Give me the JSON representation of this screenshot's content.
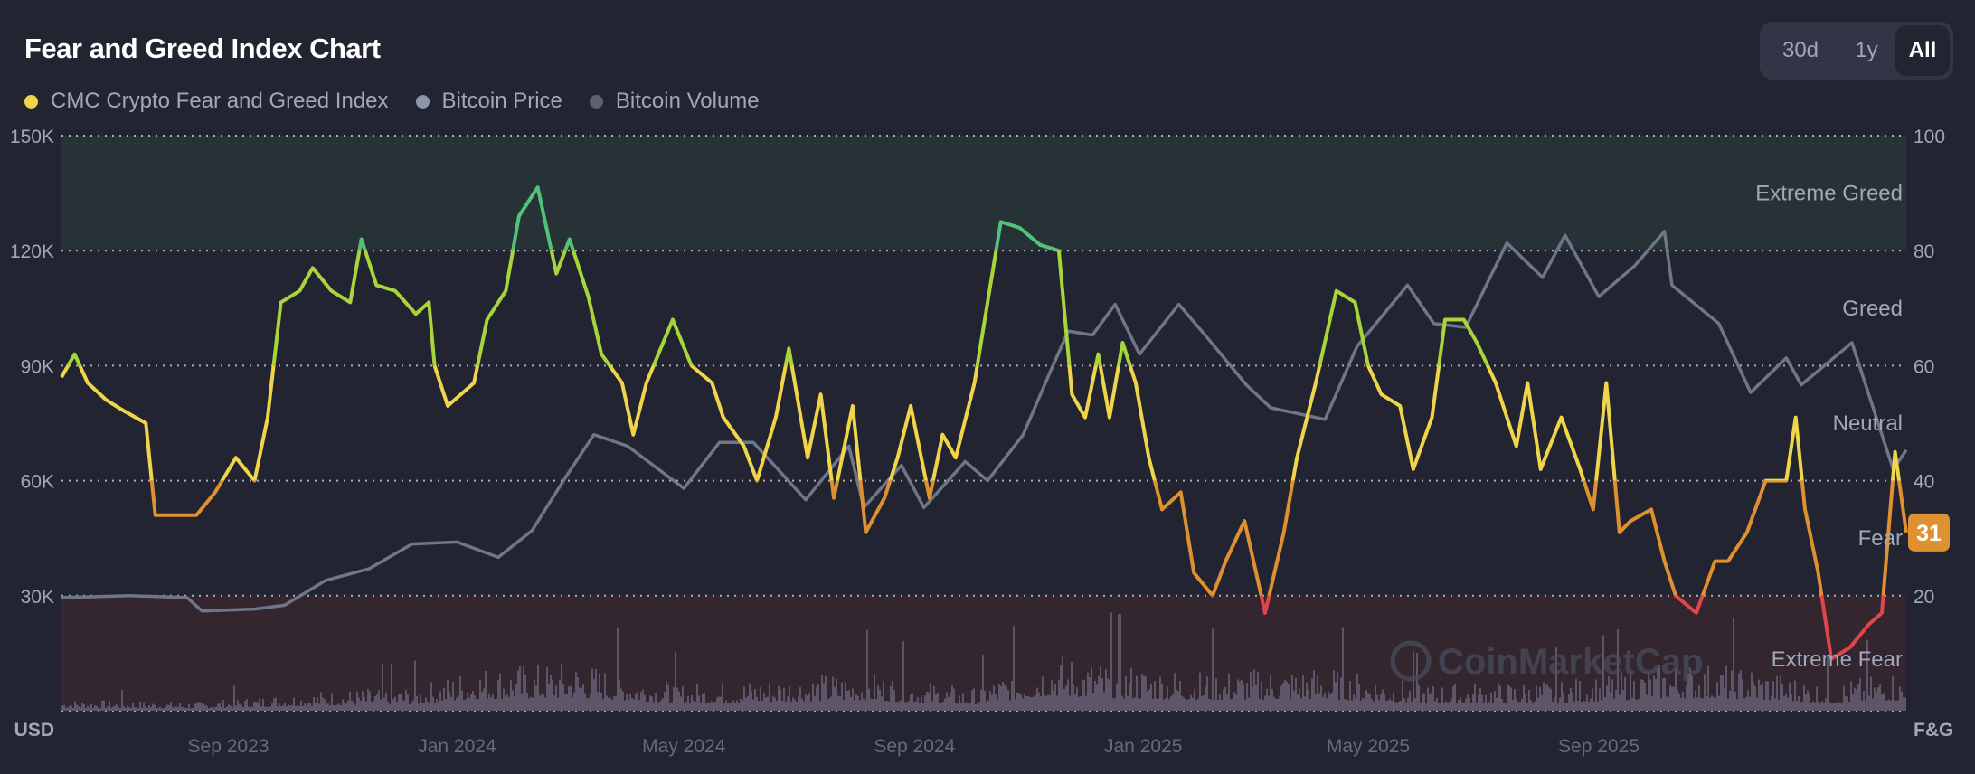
{
  "title": "Fear and Greed Index Chart",
  "legend": [
    {
      "label": "CMC Crypto Fear and Greed Index",
      "color": "#f0d54a"
    },
    {
      "label": "Bitcoin Price",
      "color": "#8e95a8"
    },
    {
      "label": "Bitcoin Volume",
      "color": "#5c6072"
    }
  ],
  "range_buttons": {
    "b30": "30d",
    "b1y": "1y",
    "all": "All",
    "active": "All"
  },
  "watermark": "CoinMarketCap",
  "chart_data": {
    "type": "line",
    "title": "Fear and Greed Index Chart",
    "x_range": [
      "2023-06-04",
      "2026-02-12"
    ],
    "x_ticks": [
      "Sep 2023",
      "Jan 2024",
      "May 2024",
      "Sep 2024",
      "Jan 2025",
      "May 2025",
      "Sep 2025"
    ],
    "x_tick_dates": [
      "2023-09-01",
      "2024-01-01",
      "2024-05-01",
      "2024-09-01",
      "2025-01-01",
      "2025-05-01",
      "2025-09-01"
    ],
    "y_left": {
      "label": "USD",
      "range": [
        0,
        150000
      ],
      "ticks": [
        "30K",
        "60K",
        "90K",
        "120K",
        "150K"
      ],
      "tick_values": [
        30000,
        60000,
        90000,
        120000,
        150000
      ]
    },
    "y_right": {
      "label": "F&G",
      "range": [
        0,
        100
      ],
      "ticks": [
        "20",
        "40",
        "60",
        "80",
        "100"
      ],
      "tick_values": [
        20,
        40,
        60,
        80,
        100
      ]
    },
    "grid": true,
    "legend_position": "top-left",
    "zones": [
      {
        "label": "Extreme Greed",
        "from": 80,
        "to": 100,
        "color": "#52c17a",
        "band": "#263236"
      },
      {
        "label": "Greed",
        "from": 60,
        "to": 80,
        "color": "#a8d63a"
      },
      {
        "label": "Neutral",
        "from": 40,
        "to": 60,
        "color": "#f0d54a"
      },
      {
        "label": "Fear",
        "from": 20,
        "to": 40,
        "color": "#e0912f"
      },
      {
        "label": "Extreme Fear",
        "from": 0,
        "to": 20,
        "color": "#e0474c",
        "band": "#33262f"
      }
    ],
    "current_value": "31",
    "current_color": "#e0912f",
    "series": [
      {
        "name": "CMC Crypto Fear and Greed Index",
        "axis": "right",
        "points": [
          [
            "2023-06-04",
            58
          ],
          [
            "2023-06-11",
            62
          ],
          [
            "2023-06-18",
            57
          ],
          [
            "2023-06-28",
            54
          ],
          [
            "2023-07-08",
            52
          ],
          [
            "2023-07-19",
            50
          ],
          [
            "2023-07-24",
            34
          ],
          [
            "2023-08-05",
            34
          ],
          [
            "2023-08-15",
            34
          ],
          [
            "2023-08-25",
            38
          ],
          [
            "2023-09-05",
            44
          ],
          [
            "2023-09-15",
            40
          ],
          [
            "2023-09-22",
            51
          ],
          [
            "2023-09-29",
            71
          ],
          [
            "2023-10-09",
            73
          ],
          [
            "2023-10-16",
            77
          ],
          [
            "2023-10-26",
            73
          ],
          [
            "2023-11-05",
            71
          ],
          [
            "2023-11-11",
            82
          ],
          [
            "2023-11-19",
            74
          ],
          [
            "2023-11-29",
            73
          ],
          [
            "2023-12-10",
            69
          ],
          [
            "2023-12-17",
            71
          ],
          [
            "2023-12-20",
            60
          ],
          [
            "2023-12-27",
            53
          ],
          [
            "2024-01-03",
            55
          ],
          [
            "2024-01-10",
            57
          ],
          [
            "2024-01-17",
            68
          ],
          [
            "2024-01-27",
            73
          ],
          [
            "2024-02-03",
            86
          ],
          [
            "2024-02-13",
            91
          ],
          [
            "2024-02-23",
            76
          ],
          [
            "2024-03-01",
            82
          ],
          [
            "2024-03-11",
            72
          ],
          [
            "2024-03-18",
            62
          ],
          [
            "2024-03-29",
            57
          ],
          [
            "2024-04-04",
            48
          ],
          [
            "2024-04-11",
            57
          ],
          [
            "2024-04-25",
            68
          ],
          [
            "2024-05-05",
            60
          ],
          [
            "2024-05-16",
            57
          ],
          [
            "2024-05-22",
            51
          ],
          [
            "2024-06-02",
            46
          ],
          [
            "2024-06-09",
            40
          ],
          [
            "2024-06-19",
            51
          ],
          [
            "2024-06-26",
            63
          ],
          [
            "2024-07-06",
            44
          ],
          [
            "2024-07-13",
            55
          ],
          [
            "2024-07-20",
            37
          ],
          [
            "2024-07-30",
            53
          ],
          [
            "2024-08-06",
            31
          ],
          [
            "2024-08-16",
            37
          ],
          [
            "2024-08-23",
            44
          ],
          [
            "2024-08-30",
            53
          ],
          [
            "2024-09-09",
            37
          ],
          [
            "2024-09-16",
            48
          ],
          [
            "2024-09-23",
            44
          ],
          [
            "2024-10-03",
            57
          ],
          [
            "2024-10-10",
            71
          ],
          [
            "2024-10-17",
            85
          ],
          [
            "2024-10-27",
            84
          ],
          [
            "2024-11-07",
            81
          ],
          [
            "2024-11-17",
            80
          ],
          [
            "2024-11-24",
            55
          ],
          [
            "2024-12-01",
            51
          ],
          [
            "2024-12-08",
            62
          ],
          [
            "2024-12-14",
            51
          ],
          [
            "2024-12-21",
            64
          ],
          [
            "2024-12-28",
            57
          ],
          [
            "2025-01-04",
            44
          ],
          [
            "2025-01-11",
            35
          ],
          [
            "2025-01-21",
            38
          ],
          [
            "2025-01-28",
            24
          ],
          [
            "2025-02-07",
            20
          ],
          [
            "2025-02-14",
            26
          ],
          [
            "2025-02-24",
            33
          ],
          [
            "2025-03-07",
            17
          ],
          [
            "2025-03-17",
            31
          ],
          [
            "2025-03-24",
            44
          ],
          [
            "2025-04-03",
            57
          ],
          [
            "2025-04-14",
            73
          ],
          [
            "2025-04-24",
            71
          ],
          [
            "2025-05-01",
            60
          ],
          [
            "2025-05-08",
            55
          ],
          [
            "2025-05-18",
            53
          ],
          [
            "2025-05-25",
            42
          ],
          [
            "2025-06-04",
            51
          ],
          [
            "2025-06-11",
            68
          ],
          [
            "2025-06-21",
            68
          ],
          [
            "2025-06-28",
            64
          ],
          [
            "2025-07-08",
            57
          ],
          [
            "2025-07-19",
            46
          ],
          [
            "2025-07-25",
            57
          ],
          [
            "2025-08-01",
            42
          ],
          [
            "2025-08-12",
            51
          ],
          [
            "2025-08-22",
            42
          ],
          [
            "2025-08-29",
            35
          ],
          [
            "2025-09-05",
            57
          ],
          [
            "2025-09-12",
            31
          ],
          [
            "2025-09-18",
            33
          ],
          [
            "2025-09-29",
            35
          ],
          [
            "2025-10-06",
            26
          ],
          [
            "2025-10-12",
            20
          ],
          [
            "2025-10-23",
            17
          ],
          [
            "2025-11-02",
            26
          ],
          [
            "2025-11-09",
            26
          ],
          [
            "2025-11-19",
            31
          ],
          [
            "2025-11-29",
            40
          ],
          [
            "2025-12-10",
            40
          ],
          [
            "2025-12-15",
            51
          ],
          [
            "2025-12-20",
            35
          ],
          [
            "2025-12-27",
            24
          ],
          [
            "2026-01-03",
            9
          ],
          [
            "2026-01-13",
            11
          ],
          [
            "2026-01-23",
            15
          ],
          [
            "2026-01-30",
            17
          ],
          [
            "2026-02-06",
            45
          ],
          [
            "2026-02-12",
            31
          ]
        ]
      },
      {
        "name": "Bitcoin Price",
        "axis": "left",
        "color": "#6f7689",
        "points": [
          [
            "2023-06-04",
            29500
          ],
          [
            "2023-07-10",
            30000
          ],
          [
            "2023-08-10",
            29500
          ],
          [
            "2023-08-18",
            26000
          ],
          [
            "2023-09-15",
            26500
          ],
          [
            "2023-10-01",
            27500
          ],
          [
            "2023-10-23",
            34000
          ],
          [
            "2023-11-15",
            37000
          ],
          [
            "2023-12-08",
            43500
          ],
          [
            "2024-01-01",
            44000
          ],
          [
            "2024-01-23",
            40000
          ],
          [
            "2024-02-10",
            47000
          ],
          [
            "2024-02-28",
            61000
          ],
          [
            "2024-03-14",
            72000
          ],
          [
            "2024-04-01",
            69000
          ],
          [
            "2024-05-01",
            58000
          ],
          [
            "2024-05-20",
            70000
          ],
          [
            "2024-06-07",
            70000
          ],
          [
            "2024-07-05",
            55000
          ],
          [
            "2024-07-28",
            69000
          ],
          [
            "2024-08-05",
            53000
          ],
          [
            "2024-08-25",
            64000
          ],
          [
            "2024-09-06",
            53000
          ],
          [
            "2024-09-28",
            65000
          ],
          [
            "2024-10-10",
            60000
          ],
          [
            "2024-10-29",
            72000
          ],
          [
            "2024-11-12",
            88000
          ],
          [
            "2024-11-22",
            99000
          ],
          [
            "2024-12-05",
            98000
          ],
          [
            "2024-12-17",
            106000
          ],
          [
            "2024-12-30",
            93000
          ],
          [
            "2025-01-20",
            106000
          ],
          [
            "2025-02-03",
            98000
          ],
          [
            "2025-02-25",
            85000
          ],
          [
            "2025-03-10",
            79000
          ],
          [
            "2025-04-08",
            76000
          ],
          [
            "2025-04-25",
            95000
          ],
          [
            "2025-05-22",
            111000
          ],
          [
            "2025-06-05",
            101000
          ],
          [
            "2025-06-22",
            100000
          ],
          [
            "2025-07-14",
            122000
          ],
          [
            "2025-08-02",
            113000
          ],
          [
            "2025-08-14",
            124000
          ],
          [
            "2025-09-01",
            108000
          ],
          [
            "2025-09-20",
            116000
          ],
          [
            "2025-10-06",
            125000
          ],
          [
            "2025-10-10",
            111000
          ],
          [
            "2025-11-04",
            101000
          ],
          [
            "2025-11-21",
            83000
          ],
          [
            "2025-12-10",
            92000
          ],
          [
            "2025-12-18",
            85000
          ],
          [
            "2026-01-14",
            96000
          ],
          [
            "2026-02-05",
            63000
          ],
          [
            "2026-02-12",
            68000
          ]
        ]
      },
      {
        "name": "Bitcoin Volume",
        "axis": "left",
        "color": "#5d5568",
        "points": [
          [
            "2023-06-04",
            2500
          ],
          [
            "2023-08-15",
            2000
          ],
          [
            "2023-10-20",
            4500
          ],
          [
            "2023-12-10",
            5500
          ],
          [
            "2024-01-11",
            10000
          ],
          [
            "2024-03-05",
            11000
          ],
          [
            "2024-05-01",
            6000
          ],
          [
            "2024-08-05",
            9000
          ],
          [
            "2024-10-01",
            5000
          ],
          [
            "2024-11-12",
            13000
          ],
          [
            "2024-12-10",
            11000
          ],
          [
            "2025-02-01",
            9000
          ],
          [
            "2025-04-07",
            10000
          ],
          [
            "2025-06-01",
            6000
          ],
          [
            "2025-08-15",
            7000
          ],
          [
            "2025-10-10",
            11000
          ],
          [
            "2025-11-21",
            10000
          ],
          [
            "2026-01-01",
            6000
          ],
          [
            "2026-02-05",
            9000
          ],
          [
            "2026-02-12",
            6000
          ]
        ]
      }
    ]
  }
}
